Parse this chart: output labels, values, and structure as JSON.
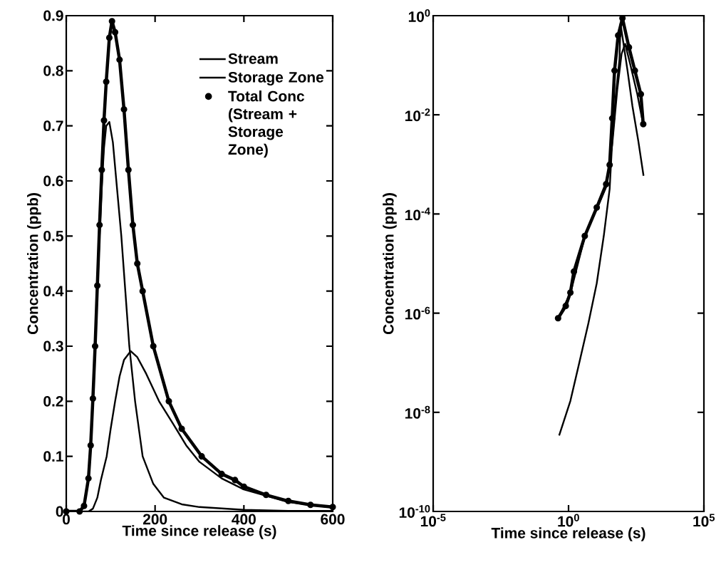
{
  "chart_data": [
    {
      "type": "line",
      "xlabel": "Time since release (s)",
      "ylabel": "Concentration (ppb)",
      "xlim": [
        0,
        600
      ],
      "ylim": [
        0,
        0.9
      ],
      "xticks": [
        0,
        200,
        400,
        600
      ],
      "yticks": [
        0,
        0.1,
        0.2,
        0.3,
        0.4,
        0.5,
        0.6,
        0.7,
        0.8,
        0.9
      ],
      "legend": "top right",
      "grid": false,
      "series": [
        {
          "name": "Stream",
          "color": "#000000",
          "x": [
            0,
            30,
            40,
            50,
            55,
            60,
            65,
            70,
            75,
            80,
            85,
            90,
            97,
            105,
            115,
            124,
            133,
            142,
            155,
            172,
            196,
            220,
            260,
            300,
            400,
            500,
            600
          ],
          "values": [
            0,
            0,
            0.01,
            0.06,
            0.12,
            0.2,
            0.29,
            0.4,
            0.5,
            0.59,
            0.66,
            0.7,
            0.707,
            0.67,
            0.58,
            0.5,
            0.4,
            0.3,
            0.2,
            0.1,
            0.05,
            0.025,
            0.013,
            0.008,
            0.003,
            0.001,
            0.001
          ]
        },
        {
          "name": "Storage Zone",
          "color": "#000000",
          "x": [
            0,
            50,
            60,
            70,
            78,
            91,
            100,
            110,
            120,
            130,
            145,
            160,
            180,
            209,
            240,
            270,
            300,
            350,
            400,
            500,
            600
          ],
          "values": [
            0,
            0,
            0.005,
            0.025,
            0.057,
            0.1,
            0.15,
            0.2,
            0.245,
            0.275,
            0.291,
            0.28,
            0.25,
            0.2,
            0.16,
            0.12,
            0.09,
            0.06,
            0.04,
            0.017,
            0.007
          ]
        },
        {
          "name": "Total Conc (Stream + Storage Zone)",
          "color": "#000000",
          "marker": "circle",
          "x": [
            0,
            30,
            40,
            50,
            55,
            60,
            65,
            70,
            75,
            80,
            85,
            90,
            97,
            103,
            110,
            120,
            130,
            140,
            150,
            160,
            172,
            196,
            231,
            260,
            305,
            350,
            380,
            400,
            450,
            500,
            550,
            600
          ],
          "values": [
            0,
            0,
            0.01,
            0.06,
            0.12,
            0.205,
            0.3,
            0.41,
            0.52,
            0.62,
            0.71,
            0.78,
            0.86,
            0.89,
            0.87,
            0.82,
            0.73,
            0.62,
            0.52,
            0.45,
            0.4,
            0.3,
            0.2,
            0.15,
            0.1,
            0.068,
            0.057,
            0.045,
            0.03,
            0.019,
            0.012,
            0.008
          ]
        }
      ]
    },
    {
      "type": "line",
      "xlabel": "Time since release (s)",
      "ylabel": "Concentration (ppb)",
      "log": "xy",
      "xlim": [
        1e-05,
        100000.0
      ],
      "ylim": [
        1e-10,
        1
      ],
      "xticks": [
        {
          "value": 1e-05,
          "label": "10$^{-5}$"
        },
        {
          "value": 1,
          "label": "10$^{0}$"
        },
        {
          "value": 100000.0,
          "label": "10$^{5}$"
        }
      ],
      "yticks": [
        {
          "value": 1e-10,
          "label": "10$^{-10}$"
        },
        {
          "value": 1e-08,
          "label": "10$^{-8}$"
        },
        {
          "value": 1e-06,
          "label": "10$^{-6}$"
        },
        {
          "value": 0.0001,
          "label": "10$^{-4}$"
        },
        {
          "value": 0.01,
          "label": "10$^{-2}$"
        },
        {
          "value": 1,
          "label": "10$^{0}$"
        }
      ],
      "grid": false,
      "series": [
        {
          "color": "#000000",
          "x": [
            0.45,
            1.17,
            2.6,
            5.4,
            11,
            20,
            33,
            41,
            56,
            76,
            83,
            151,
            229,
            380,
            589
          ],
          "values": [
            3.4e-09,
            1.7e-08,
            1.1e-07,
            6.2e-07,
            4e-06,
            3.6e-05,
            0.00032,
            0.0029,
            0.026,
            0.13,
            0.69,
            0.078,
            0.015,
            0.0029,
            0.00059
          ]
        },
        {
          "color": "#000000",
          "x": [
            0.41,
            1.17,
            3.98,
            11,
            24.5,
            41,
            63,
            91,
            123,
            186,
            347,
            575
          ],
          "values": [
            7.9e-07,
            2.5e-06,
            3.5e-05,
            0.000126,
            0.00035,
            0.0025,
            0.032,
            0.17,
            0.27,
            0.11,
            0.026,
            0.0063
          ]
        },
        {
          "color": "#000000",
          "marker": "circle",
          "x": [
            0.41,
            0.79,
            1.17,
            1.58,
            3.98,
            11,
            24.5,
            33,
            41,
            50,
            68,
            98,
            170,
            282,
            468,
            575
          ],
          "values": [
            7.9e-07,
            1.4e-06,
            2.6e-06,
            6.9e-06,
            3.6e-05,
            0.000135,
            0.0004,
            0.00098,
            0.0085,
            0.078,
            0.4,
            0.89,
            0.23,
            0.078,
            0.026,
            0.0065
          ]
        }
      ]
    }
  ]
}
